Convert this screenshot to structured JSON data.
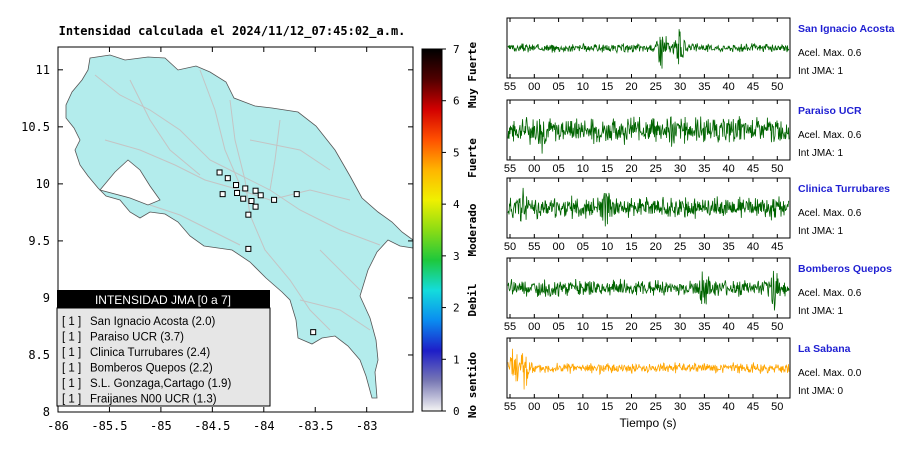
{
  "chart_data": [
    {
      "type": "map",
      "title": "Intensidad calculada el 2024/11/12_07:45:02_a.m.",
      "xlim": [
        -86.0,
        -82.55
      ],
      "ylim": [
        8.0,
        11.2
      ],
      "x_ticks": [
        "-86",
        "-85.5",
        "-85",
        "-84.5",
        "-84",
        "-83.5",
        "-83"
      ],
      "x_tick_values": [
        -86,
        -85.5,
        -85,
        -84.5,
        -84,
        -83.5,
        -83
      ],
      "y_ticks": [
        "8",
        "8.5",
        "9",
        "9.5",
        "10",
        "10.5",
        "11"
      ],
      "y_tick_values": [
        8,
        8.5,
        9,
        9.5,
        10,
        10.5,
        11
      ],
      "land_color": "#b3ecec",
      "road_color": "#c8c8c8",
      "stations": [
        {
          "lon": -84.43,
          "lat": 10.1
        },
        {
          "lon": -84.35,
          "lat": 10.05
        },
        {
          "lon": -84.27,
          "lat": 9.99
        },
        {
          "lon": -84.18,
          "lat": 9.96
        },
        {
          "lon": -84.08,
          "lat": 9.94
        },
        {
          "lon": -84.03,
          "lat": 9.9
        },
        {
          "lon": -84.12,
          "lat": 9.85
        },
        {
          "lon": -84.2,
          "lat": 9.87
        },
        {
          "lon": -84.4,
          "lat": 9.91
        },
        {
          "lon": -84.26,
          "lat": 9.92
        },
        {
          "lon": -83.9,
          "lat": 9.86
        },
        {
          "lon": -83.68,
          "lat": 9.91
        },
        {
          "lon": -84.08,
          "lat": 9.8
        },
        {
          "lon": -84.15,
          "lat": 9.73
        },
        {
          "lon": -84.15,
          "lat": 9.43
        },
        {
          "lon": -83.52,
          "lat": 8.7
        }
      ]
    },
    {
      "type": "colorbar",
      "ticks": [
        "0",
        "1",
        "2",
        "3",
        "4",
        "5",
        "6",
        "7"
      ],
      "range": [
        0,
        7
      ],
      "category_labels": [
        "No sentido",
        "Debil",
        "Moderado",
        "Fuerte",
        "Muy Fuerte"
      ],
      "colors": [
        "#f4f4f4",
        "#7878b4",
        "#1e1ec8",
        "#0a8cf0",
        "#14dcdc",
        "#1ec83c",
        "#8cdc14",
        "#f0f000",
        "#ffb400",
        "#ff5000",
        "#d20000",
        "#500000",
        "#000000"
      ]
    },
    {
      "type": "table",
      "title": "INTENSIDAD JMA [0 a 7]",
      "rows": [
        {
          "level": "[ 1 ]",
          "name": "San Ignacio Acosta (2.0)"
        },
        {
          "level": "[ 1 ]",
          "name": "Paraiso UCR (3.7)"
        },
        {
          "level": "[ 1 ]",
          "name": "Clinica Turrubares (2.4)"
        },
        {
          "level": "[ 1 ]",
          "name": "Bomberos Quepos (2.2)"
        },
        {
          "level": "[ 1 ]",
          "name": "S.L. Gonzaga,Cartago (1.9)"
        },
        {
          "level": "[ 1 ]",
          "name": "Fraijanes N00 UCR (1.3)"
        }
      ]
    },
    {
      "type": "line",
      "xlabel": "Tiempo (s)",
      "series": [
        {
          "name": "San Ignacio Acosta",
          "accel": "Acel. Max. 0.6",
          "jma": "Int JMA: 1",
          "color": "#006400",
          "ticks": [
            "55",
            "00",
            "05",
            "10",
            "15",
            "20",
            "25",
            "30",
            "35",
            "40",
            "45",
            "50"
          ],
          "amplitude": 0.18,
          "bursts": [
            [
              0.55,
              0.9
            ],
            [
              0.61,
              0.7
            ]
          ],
          "seed": 3
        },
        {
          "name": "Paraiso UCR",
          "accel": "Acel. Max. 0.6",
          "jma": "Int JMA: 1",
          "color": "#006400",
          "ticks": [
            "55",
            "00",
            "05",
            "10",
            "15",
            "20",
            "25",
            "30",
            "35",
            "40",
            "45",
            "50"
          ],
          "amplitude": 0.55,
          "bursts": [
            [
              0.12,
              0.9
            ],
            [
              0.58,
              0.8
            ]
          ],
          "seed": 7
        },
        {
          "name": "Clinica Turrubares",
          "accel": "Acel. Max. 0.6",
          "jma": "Int JMA: 1",
          "color": "#006400",
          "ticks": [
            "50",
            "55",
            "00",
            "05",
            "10",
            "15",
            "20",
            "25",
            "30",
            "35",
            "40",
            "45"
          ],
          "amplitude": 0.45,
          "bursts": [
            [
              0.05,
              0.95
            ],
            [
              0.35,
              0.8
            ]
          ],
          "seed": 11
        },
        {
          "name": "Bomberos Quepos",
          "accel": "Acel. Max. 0.6",
          "jma": "Int JMA: 1",
          "color": "#006400",
          "ticks": [
            "55",
            "00",
            "05",
            "10",
            "15",
            "20",
            "25",
            "30",
            "35",
            "40",
            "45",
            "50"
          ],
          "amplitude": 0.35,
          "bursts": [
            [
              0.7,
              0.9
            ],
            [
              0.95,
              0.95
            ]
          ],
          "seed": 19
        },
        {
          "name": "La Sabana",
          "accel": "Acel. Max. 0.0",
          "jma": "Int JMA: 0",
          "color": "#ffa500",
          "ticks": [
            "55",
            "00",
            "05",
            "10",
            "15",
            "20",
            "25",
            "30",
            "35",
            "40",
            "45",
            "50"
          ],
          "amplitude": 0.22,
          "bursts": [
            [
              0.06,
              1.0
            ],
            [
              0.02,
              0.9
            ]
          ],
          "seed": 23
        }
      ]
    }
  ]
}
